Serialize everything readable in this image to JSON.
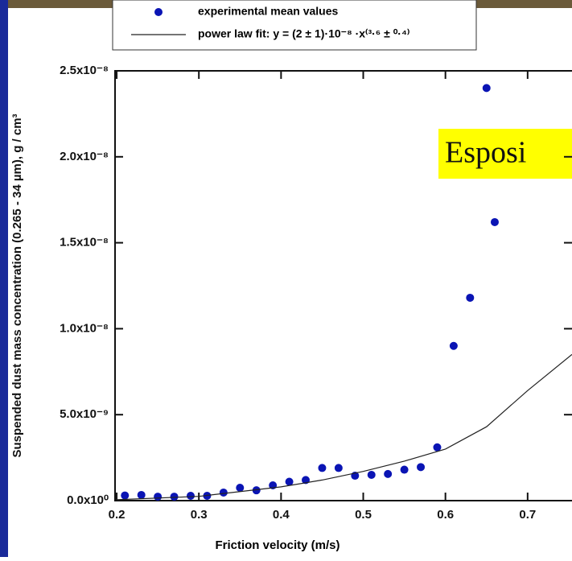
{
  "chart_data": {
    "type": "scatter",
    "xlabel": "Friction velocity (m/s)",
    "ylabel": "Suspended dust mass concentration (0.265 - 34 µm), g / cm³",
    "overlay_text": "Esposi",
    "xlim": [
      0.198,
      0.754
    ],
    "ylim": [
      0,
      2.5e-08
    ],
    "xticks": [
      0.2,
      0.3,
      0.4,
      0.5,
      0.6,
      0.7
    ],
    "yticks": [
      {
        "value": 0,
        "label": "0.0x10⁰"
      },
      {
        "value": 5e-09,
        "label": "5.0x10⁻⁹"
      },
      {
        "value": 1e-08,
        "label": "1.0x10⁻⁸"
      },
      {
        "value": 1.5e-08,
        "label": "1.5x10⁻⁸"
      },
      {
        "value": 2e-08,
        "label": "2.0x10⁻⁸"
      },
      {
        "value": 2.5e-08,
        "label": "2.5x10⁻⁸"
      }
    ],
    "series": [
      {
        "name": "experimental mean values",
        "color": "#0a14b4",
        "kind": "points",
        "x": [
          0.21,
          0.23,
          0.25,
          0.27,
          0.29,
          0.31,
          0.33,
          0.35,
          0.37,
          0.39,
          0.41,
          0.43,
          0.45,
          0.47,
          0.49,
          0.51,
          0.53,
          0.55,
          0.57,
          0.59,
          0.61,
          0.63,
          0.65,
          0.66
        ],
        "values": [
          3e-10,
          3.3e-10,
          2.3e-10,
          2.3e-10,
          2.8e-10,
          2.8e-10,
          4.7e-10,
          7.5e-10,
          6e-10,
          8.9e-10,
          1.1e-09,
          1.2e-09,
          1.9e-09,
          1.9e-09,
          1.45e-09,
          1.5e-09,
          1.55e-09,
          1.8e-09,
          1.95e-09,
          3.1e-09,
          9e-09,
          1.18e-08,
          2.4e-08,
          1.62e-08
        ]
      },
      {
        "name": "power law fit: y = (2 ± 1)·10⁻⁸ ·x⁽³·⁶ ± ⁰·⁴⁾",
        "color": "#222222",
        "kind": "line",
        "x": [
          0.2,
          0.3,
          0.4,
          0.45,
          0.5,
          0.55,
          0.6,
          0.65,
          0.7,
          0.754
        ],
        "values": [
          5e-11,
          2.5e-10,
          8e-10,
          1.2e-09,
          1.7e-09,
          2.3e-09,
          3e-09,
          4.3e-09,
          6.4e-09,
          8.5e-09
        ]
      }
    ]
  }
}
